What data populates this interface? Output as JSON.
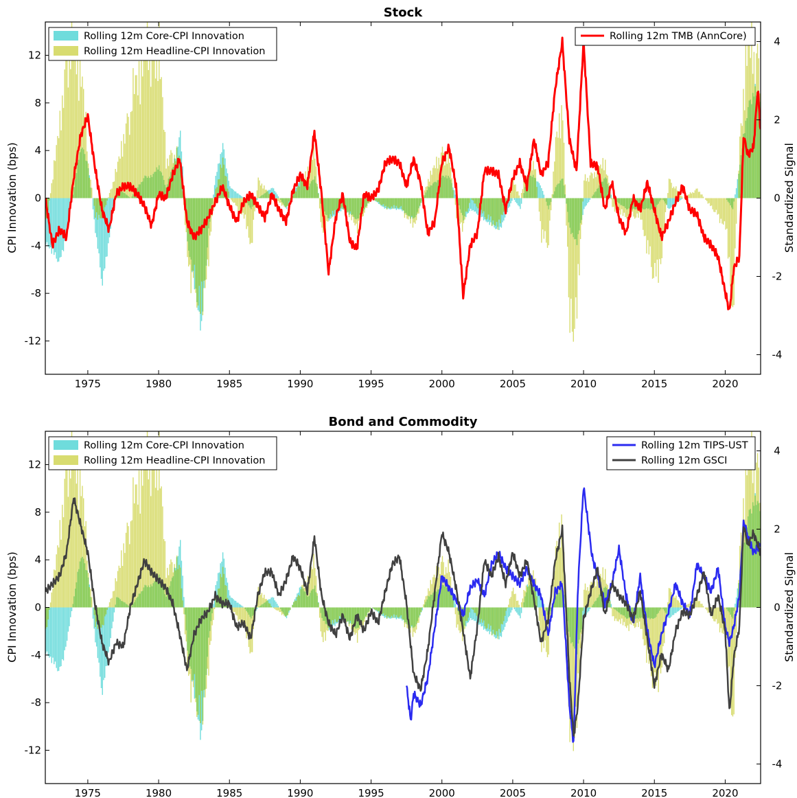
{
  "colors": {
    "core": "#6fdcdc",
    "headline": "#d8dc70",
    "overlap": "#8fcc52",
    "tmb": "#ff0000",
    "tips": "#2a2af0",
    "gsci": "#404040"
  },
  "chart_data": [
    {
      "type": "bar",
      "title": "Stock",
      "ylabel": "CPI Innovation (bps)",
      "y2label": "Standardized Signal",
      "xlim": [
        1972.0,
        2022.5
      ],
      "ylim": [
        -14.8,
        14.8
      ],
      "y2lim": [
        -4.5,
        4.5
      ],
      "xticks": [
        "1975",
        "1980",
        "1985",
        "1990",
        "1995",
        "2000",
        "2005",
        "2010",
        "2015",
        "2020"
      ],
      "yticks": [
        "12",
        "8",
        "4",
        "0",
        "-4",
        "-8",
        "-12"
      ],
      "y2ticks": [
        "4",
        "2",
        "0",
        "-2",
        "-4"
      ],
      "grid": false,
      "legend_left": {
        "placement": "top-left",
        "entries": [
          "Rolling 12m Core-CPI Innovation",
          "Rolling 12m Headline-CPI Innovation"
        ]
      },
      "legend_right": {
        "placement": "top-right",
        "entries": [
          "Rolling 12m TMB (AnnCore)"
        ]
      },
      "innovation_years": [
        1972.0,
        1973.0,
        1973.5,
        1974.0,
        1974.5,
        1975.0,
        1975.5,
        1976.0,
        1977.0,
        1978.0,
        1978.5,
        1979.0,
        1979.5,
        1980.0,
        1980.5,
        1981.0,
        1981.5,
        1982.0,
        1982.5,
        1983.0,
        1983.5,
        1984.0,
        1984.5,
        1985.0,
        1986.0,
        1986.5,
        1987.0,
        1988.0,
        1989.0,
        1990.0,
        1990.5,
        1991.0,
        1991.5,
        1992.0,
        1993.0,
        1994.0,
        1995.0,
        1996.0,
        1997.0,
        1998.0,
        1999.0,
        2000.0,
        2000.5,
        2001.0,
        2001.5,
        2002.0,
        2003.0,
        2004.0,
        2005.0,
        2005.5,
        2006.0,
        2006.5,
        2007.0,
        2007.5,
        2008.0,
        2008.5,
        2009.0,
        2009.5,
        2010.0,
        2011.0,
        2011.5,
        2012.0,
        2013.0,
        2014.0,
        2015.0,
        2015.5,
        2016.0,
        2017.0,
        2018.0,
        2019.0,
        2020.0,
        2020.5,
        2021.0,
        2021.5,
        2022.0,
        2022.5
      ],
      "core_values": [
        -4,
        -6,
        -3,
        1,
        5,
        3,
        -3,
        -8,
        1,
        0,
        1,
        2,
        2,
        3,
        1,
        3,
        6,
        -4,
        -8,
        -12,
        -3,
        2,
        5,
        1,
        0,
        -1,
        0,
        1,
        -1,
        2,
        1,
        2,
        -1,
        -2,
        -1,
        -2,
        0,
        -1,
        -1,
        -2,
        1,
        2,
        2,
        0,
        -2,
        -1,
        -2,
        -3,
        0,
        -1,
        2,
        2,
        1,
        -1,
        1,
        2,
        -3,
        -4,
        -1,
        1,
        2,
        0,
        -1,
        -1,
        -1,
        0,
        -1,
        0,
        0,
        0,
        0,
        -1,
        3,
        8,
        10,
        9
      ],
      "headline_values": [
        -3,
        8,
        16,
        16,
        14,
        4,
        -2,
        -2,
        3,
        10,
        13,
        16,
        16,
        16,
        4,
        5,
        4,
        -6,
        -10,
        -12,
        -6,
        1,
        4,
        0,
        -2,
        -5,
        2,
        0,
        -1,
        2,
        3,
        5,
        -4,
        -2,
        -1,
        -3,
        0,
        -1,
        -1,
        -3,
        2,
        5,
        4,
        -2,
        -3,
        0,
        -2,
        -3,
        2,
        0,
        3,
        4,
        -4,
        -5,
        6,
        10,
        -16,
        -12,
        2,
        3,
        4,
        -1,
        -2,
        -2,
        -9,
        -6,
        2,
        0,
        1,
        -1,
        -3,
        -12,
        6,
        16,
        16,
        14
      ],
      "tmb_years": [
        1972.0,
        1972.5,
        1973.0,
        1973.5,
        1974.0,
        1974.5,
        1975.0,
        1975.5,
        1976.0,
        1976.5,
        1977.0,
        1977.5,
        1978.0,
        1978.5,
        1979.0,
        1979.5,
        1980.0,
        1980.5,
        1981.0,
        1981.5,
        1982.0,
        1982.5,
        1983.0,
        1983.5,
        1984.0,
        1984.5,
        1985.0,
        1985.5,
        1986.0,
        1986.5,
        1987.0,
        1987.5,
        1988.0,
        1988.5,
        1989.0,
        1989.5,
        1990.0,
        1990.5,
        1991.0,
        1991.5,
        1992.0,
        1992.5,
        1993.0,
        1993.5,
        1994.0,
        1994.5,
        1995.0,
        1995.5,
        1996.0,
        1996.5,
        1997.0,
        1997.5,
        1998.0,
        1998.5,
        1999.0,
        1999.5,
        2000.0,
        2000.5,
        2001.0,
        2001.5,
        2002.0,
        2002.5,
        2003.0,
        2003.5,
        2004.0,
        2004.5,
        2005.0,
        2005.5,
        2006.0,
        2006.5,
        2007.0,
        2007.5,
        2008.0,
        2008.5,
        2009.0,
        2009.5,
        2010.0,
        2010.5,
        2011.0,
        2011.5,
        2012.0,
        2012.5,
        2013.0,
        2013.5,
        2014.0,
        2014.5,
        2015.0,
        2015.5,
        2016.0,
        2016.5,
        2017.0,
        2017.5,
        2018.0,
        2018.5,
        2019.0,
        2019.5,
        2020.0,
        2020.3,
        2020.6,
        2021.0,
        2021.3,
        2021.6,
        2022.0,
        2022.3,
        2022.5
      ],
      "tmb_values": [
        0.0,
        -1.2,
        -0.8,
        -1.0,
        0.5,
        1.6,
        2.1,
        0.8,
        -0.3,
        -0.8,
        0.1,
        0.3,
        0.3,
        0.1,
        -0.2,
        -0.7,
        0.1,
        0.0,
        0.6,
        1.0,
        -0.6,
        -1.0,
        -0.8,
        -0.5,
        -0.1,
        0.3,
        -0.2,
        -0.6,
        -0.1,
        0.1,
        -0.2,
        -0.5,
        0.1,
        -0.3,
        -0.6,
        0.2,
        0.6,
        0.3,
        1.7,
        0.1,
        -1.9,
        -0.5,
        0.1,
        -1.1,
        -1.3,
        0.1,
        0.0,
        0.2,
        0.9,
        1.0,
        0.9,
        0.3,
        1.0,
        0.4,
        -0.9,
        -0.6,
        0.9,
        1.3,
        0.3,
        -2.5,
        -1.2,
        -0.9,
        0.7,
        0.7,
        0.6,
        -0.3,
        0.5,
        0.9,
        0.3,
        1.5,
        0.6,
        0.9,
        2.8,
        4.0,
        1.5,
        0.7,
        4.0,
        0.9,
        0.8,
        -0.3,
        0.4,
        -0.5,
        -0.9,
        0.0,
        -0.3,
        0.4,
        -0.3,
        -1.0,
        -0.6,
        -0.1,
        0.3,
        -0.3,
        -0.4,
        -1.0,
        -1.2,
        -1.5,
        -2.4,
        -2.9,
        -1.8,
        -1.5,
        1.6,
        1.1,
        1.3,
        2.8,
        1.7
      ]
    },
    {
      "type": "bar",
      "title": "Bond and Commodity",
      "ylabel": "CPI Innovation (bps)",
      "y2label": "Standardized Signal",
      "xlim": [
        1972.0,
        2022.5
      ],
      "ylim": [
        -14.8,
        14.8
      ],
      "y2lim": [
        -4.5,
        4.5
      ],
      "xticks": [
        "1975",
        "1980",
        "1985",
        "1990",
        "1995",
        "2000",
        "2005",
        "2010",
        "2015",
        "2020"
      ],
      "yticks": [
        "12",
        "8",
        "4",
        "0",
        "-4",
        "-8",
        "-12"
      ],
      "y2ticks": [
        "4",
        "2",
        "0",
        "-2",
        "-4"
      ],
      "grid": false,
      "legend_left": {
        "placement": "top-left",
        "entries": [
          "Rolling 12m Core-CPI Innovation",
          "Rolling 12m Headline-CPI Innovation"
        ]
      },
      "legend_right": {
        "placement": "top-right",
        "entries": [
          "Rolling 12m TIPS-UST",
          "Rolling 12m GSCI"
        ]
      },
      "tips_years": [
        1997.5,
        1997.8,
        1998.0,
        1998.5,
        1999.0,
        1999.5,
        2000.0,
        2000.5,
        2001.0,
        2001.5,
        2002.0,
        2002.5,
        2003.0,
        2003.5,
        2004.0,
        2004.5,
        2005.0,
        2005.5,
        2006.0,
        2006.5,
        2007.0,
        2007.5,
        2008.0,
        2008.5,
        2009.0,
        2009.3,
        2009.6,
        2010.0,
        2010.3,
        2010.6,
        2011.0,
        2011.5,
        2012.0,
        2012.5,
        2013.0,
        2013.5,
        2014.0,
        2014.5,
        2015.0,
        2015.5,
        2016.0,
        2016.5,
        2017.0,
        2017.5,
        2018.0,
        2018.5,
        2019.0,
        2019.5,
        2020.0,
        2020.3,
        2020.6,
        2021.0,
        2021.3,
        2021.6,
        2022.0,
        2022.5
      ],
      "tips_values": [
        -2.0,
        -2.9,
        -2.2,
        -2.5,
        -1.8,
        -0.5,
        0.8,
        0.5,
        0.2,
        -0.2,
        0.5,
        0.7,
        0.3,
        1.1,
        1.4,
        1.0,
        0.8,
        0.6,
        1.0,
        0.6,
        0.3,
        -0.7,
        0.4,
        0.6,
        -2.5,
        -3.5,
        0.5,
        3.1,
        2.2,
        1.3,
        0.8,
        0.1,
        0.6,
        1.5,
        0.3,
        -0.4,
        0.8,
        -0.6,
        -1.5,
        -0.7,
        -0.1,
        0.6,
        0.1,
        -0.2,
        1.1,
        0.8,
        0.4,
        1.0,
        -0.5,
        -0.9,
        -0.5,
        0.3,
        2.2,
        1.8,
        1.4,
        1.6
      ],
      "gsci_years": [
        1972.0,
        1972.5,
        1973.0,
        1973.5,
        1974.0,
        1974.5,
        1975.0,
        1975.5,
        1976.0,
        1976.5,
        1977.0,
        1977.5,
        1978.0,
        1978.5,
        1979.0,
        1979.5,
        1980.0,
        1980.5,
        1981.0,
        1981.5,
        1982.0,
        1982.5,
        1983.0,
        1983.5,
        1984.0,
        1984.5,
        1985.0,
        1985.5,
        1986.0,
        1986.5,
        1987.0,
        1987.5,
        1988.0,
        1988.5,
        1989.0,
        1989.5,
        1990.0,
        1990.5,
        1991.0,
        1991.5,
        1992.0,
        1992.5,
        1993.0,
        1993.5,
        1994.0,
        1994.5,
        1995.0,
        1995.5,
        1996.0,
        1996.5,
        1997.0,
        1997.5,
        1998.0,
        1998.5,
        1999.0,
        1999.5,
        2000.0,
        2000.5,
        2001.0,
        2001.5,
        2002.0,
        2002.5,
        2003.0,
        2003.5,
        2004.0,
        2004.5,
        2005.0,
        2005.5,
        2006.0,
        2006.5,
        2007.0,
        2007.5,
        2008.0,
        2008.5,
        2009.0,
        2009.3,
        2009.6,
        2010.0,
        2010.5,
        2011.0,
        2011.5,
        2012.0,
        2012.5,
        2013.0,
        2013.5,
        2014.0,
        2014.5,
        2015.0,
        2015.5,
        2016.0,
        2016.5,
        2017.0,
        2017.5,
        2018.0,
        2018.5,
        2019.0,
        2019.5,
        2020.0,
        2020.3,
        2020.6,
        2021.0,
        2021.3,
        2021.6,
        2022.0,
        2022.5
      ],
      "gsci_values": [
        0.4,
        0.6,
        0.8,
        1.4,
        2.8,
        2.1,
        1.4,
        0.1,
        -0.9,
        -1.4,
        -0.9,
        -1.0,
        0.0,
        0.6,
        1.2,
        0.9,
        0.7,
        0.5,
        0.1,
        -0.7,
        -1.6,
        -0.7,
        -0.3,
        -0.1,
        0.3,
        0.1,
        0.1,
        -0.5,
        -0.4,
        -0.8,
        0.3,
        0.9,
        0.9,
        0.3,
        0.7,
        1.3,
        1.0,
        0.4,
        1.8,
        0.3,
        -0.4,
        -0.7,
        -0.2,
        -0.8,
        -0.2,
        -0.6,
        -0.1,
        -0.4,
        0.4,
        1.1,
        1.3,
        0.1,
        -1.7,
        -2.1,
        -1.1,
        0.4,
        1.9,
        1.4,
        0.5,
        -0.6,
        -1.8,
        -0.5,
        1.2,
        0.8,
        1.3,
        0.6,
        1.4,
        0.8,
        1.2,
        0.2,
        -0.9,
        -0.3,
        1.2,
        2.0,
        -1.8,
        -3.3,
        -2.5,
        -0.3,
        0.4,
        1.0,
        -0.2,
        0.6,
        0.3,
        0.1,
        -0.3,
        0.4,
        -0.8,
        -2.0,
        -1.2,
        -1.6,
        -0.6,
        -0.1,
        -0.2,
        0.3,
        0.9,
        -0.2,
        0.3,
        -0.6,
        -2.7,
        -1.3,
        -0.5,
        2.1,
        1.6,
        1.9,
        1.4
      ]
    }
  ]
}
